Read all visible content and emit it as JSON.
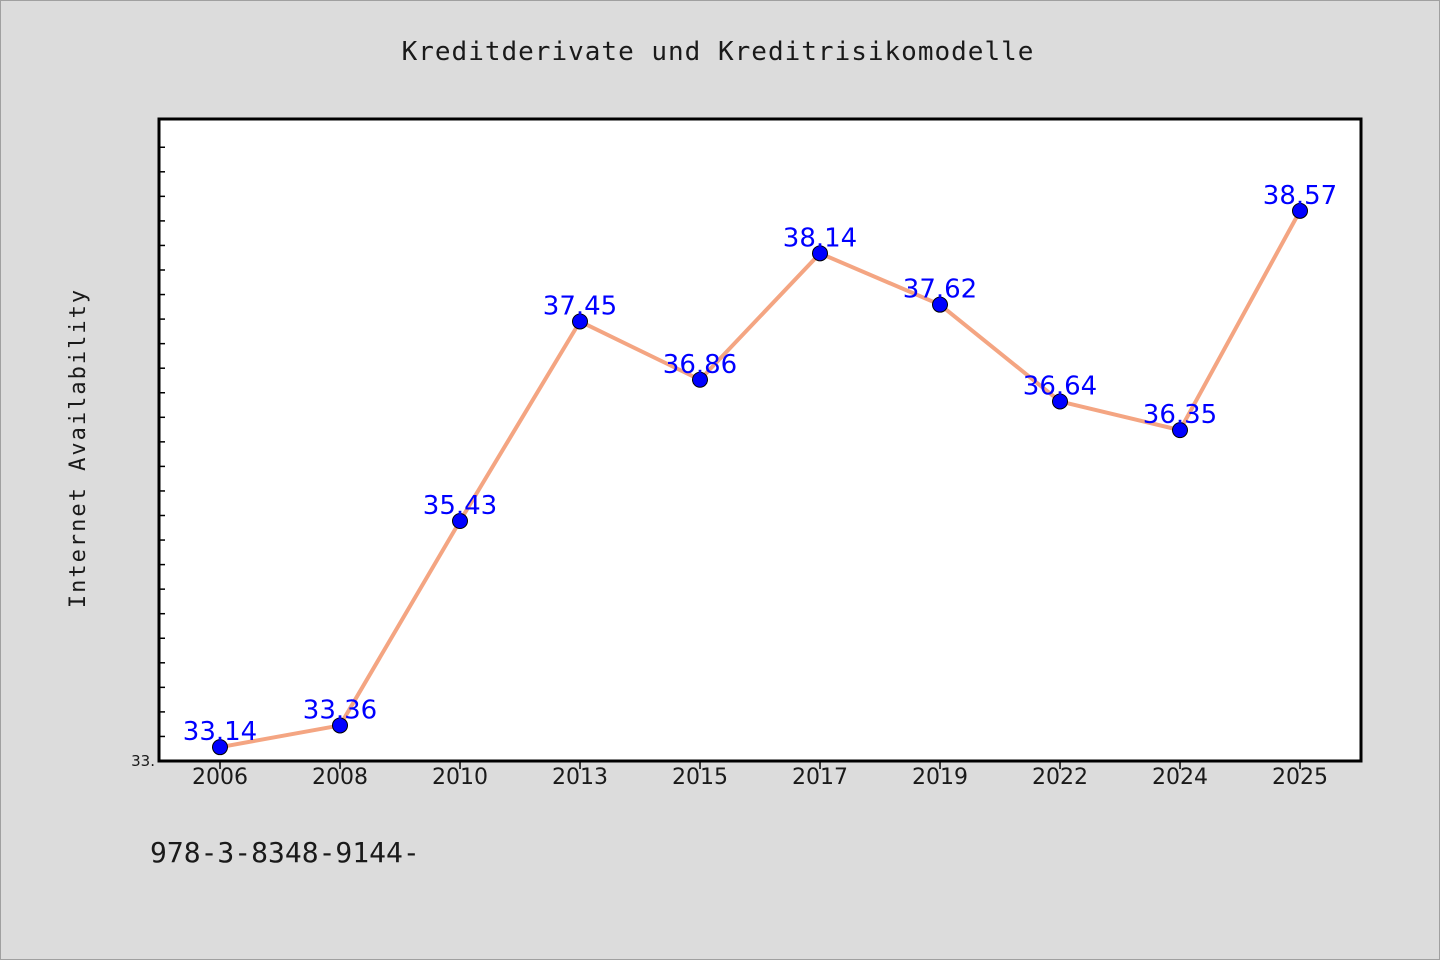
{
  "chart_data": {
    "type": "line",
    "title": "Kreditderivate und Kreditrisikomodelle",
    "xlabel": "",
    "ylabel": "Internet Availability",
    "categories": [
      "2006",
      "2008",
      "2010",
      "2013",
      "2015",
      "2017",
      "2019",
      "2022",
      "2024",
      "2025"
    ],
    "series": [
      {
        "values": [
          33.14,
          33.36,
          35.43,
          37.45,
          36.86,
          38.14,
          37.62,
          36.64,
          36.35,
          38.57
        ],
        "labels": [
          "33.14",
          "33.36",
          "35.43",
          "37.45",
          "36.86",
          "38.14",
          "37.62",
          "36.64",
          "36.35",
          "38.57"
        ]
      }
    ],
    "ylim": [
      33.0,
      39.5
    ],
    "y_ticks": [
      "33."
    ],
    "grid": false,
    "line_color": "#f4a582",
    "marker_color": "#0000ff",
    "label_color": "#0000ff"
  },
  "footer_text": "978-3-8348-9144-"
}
